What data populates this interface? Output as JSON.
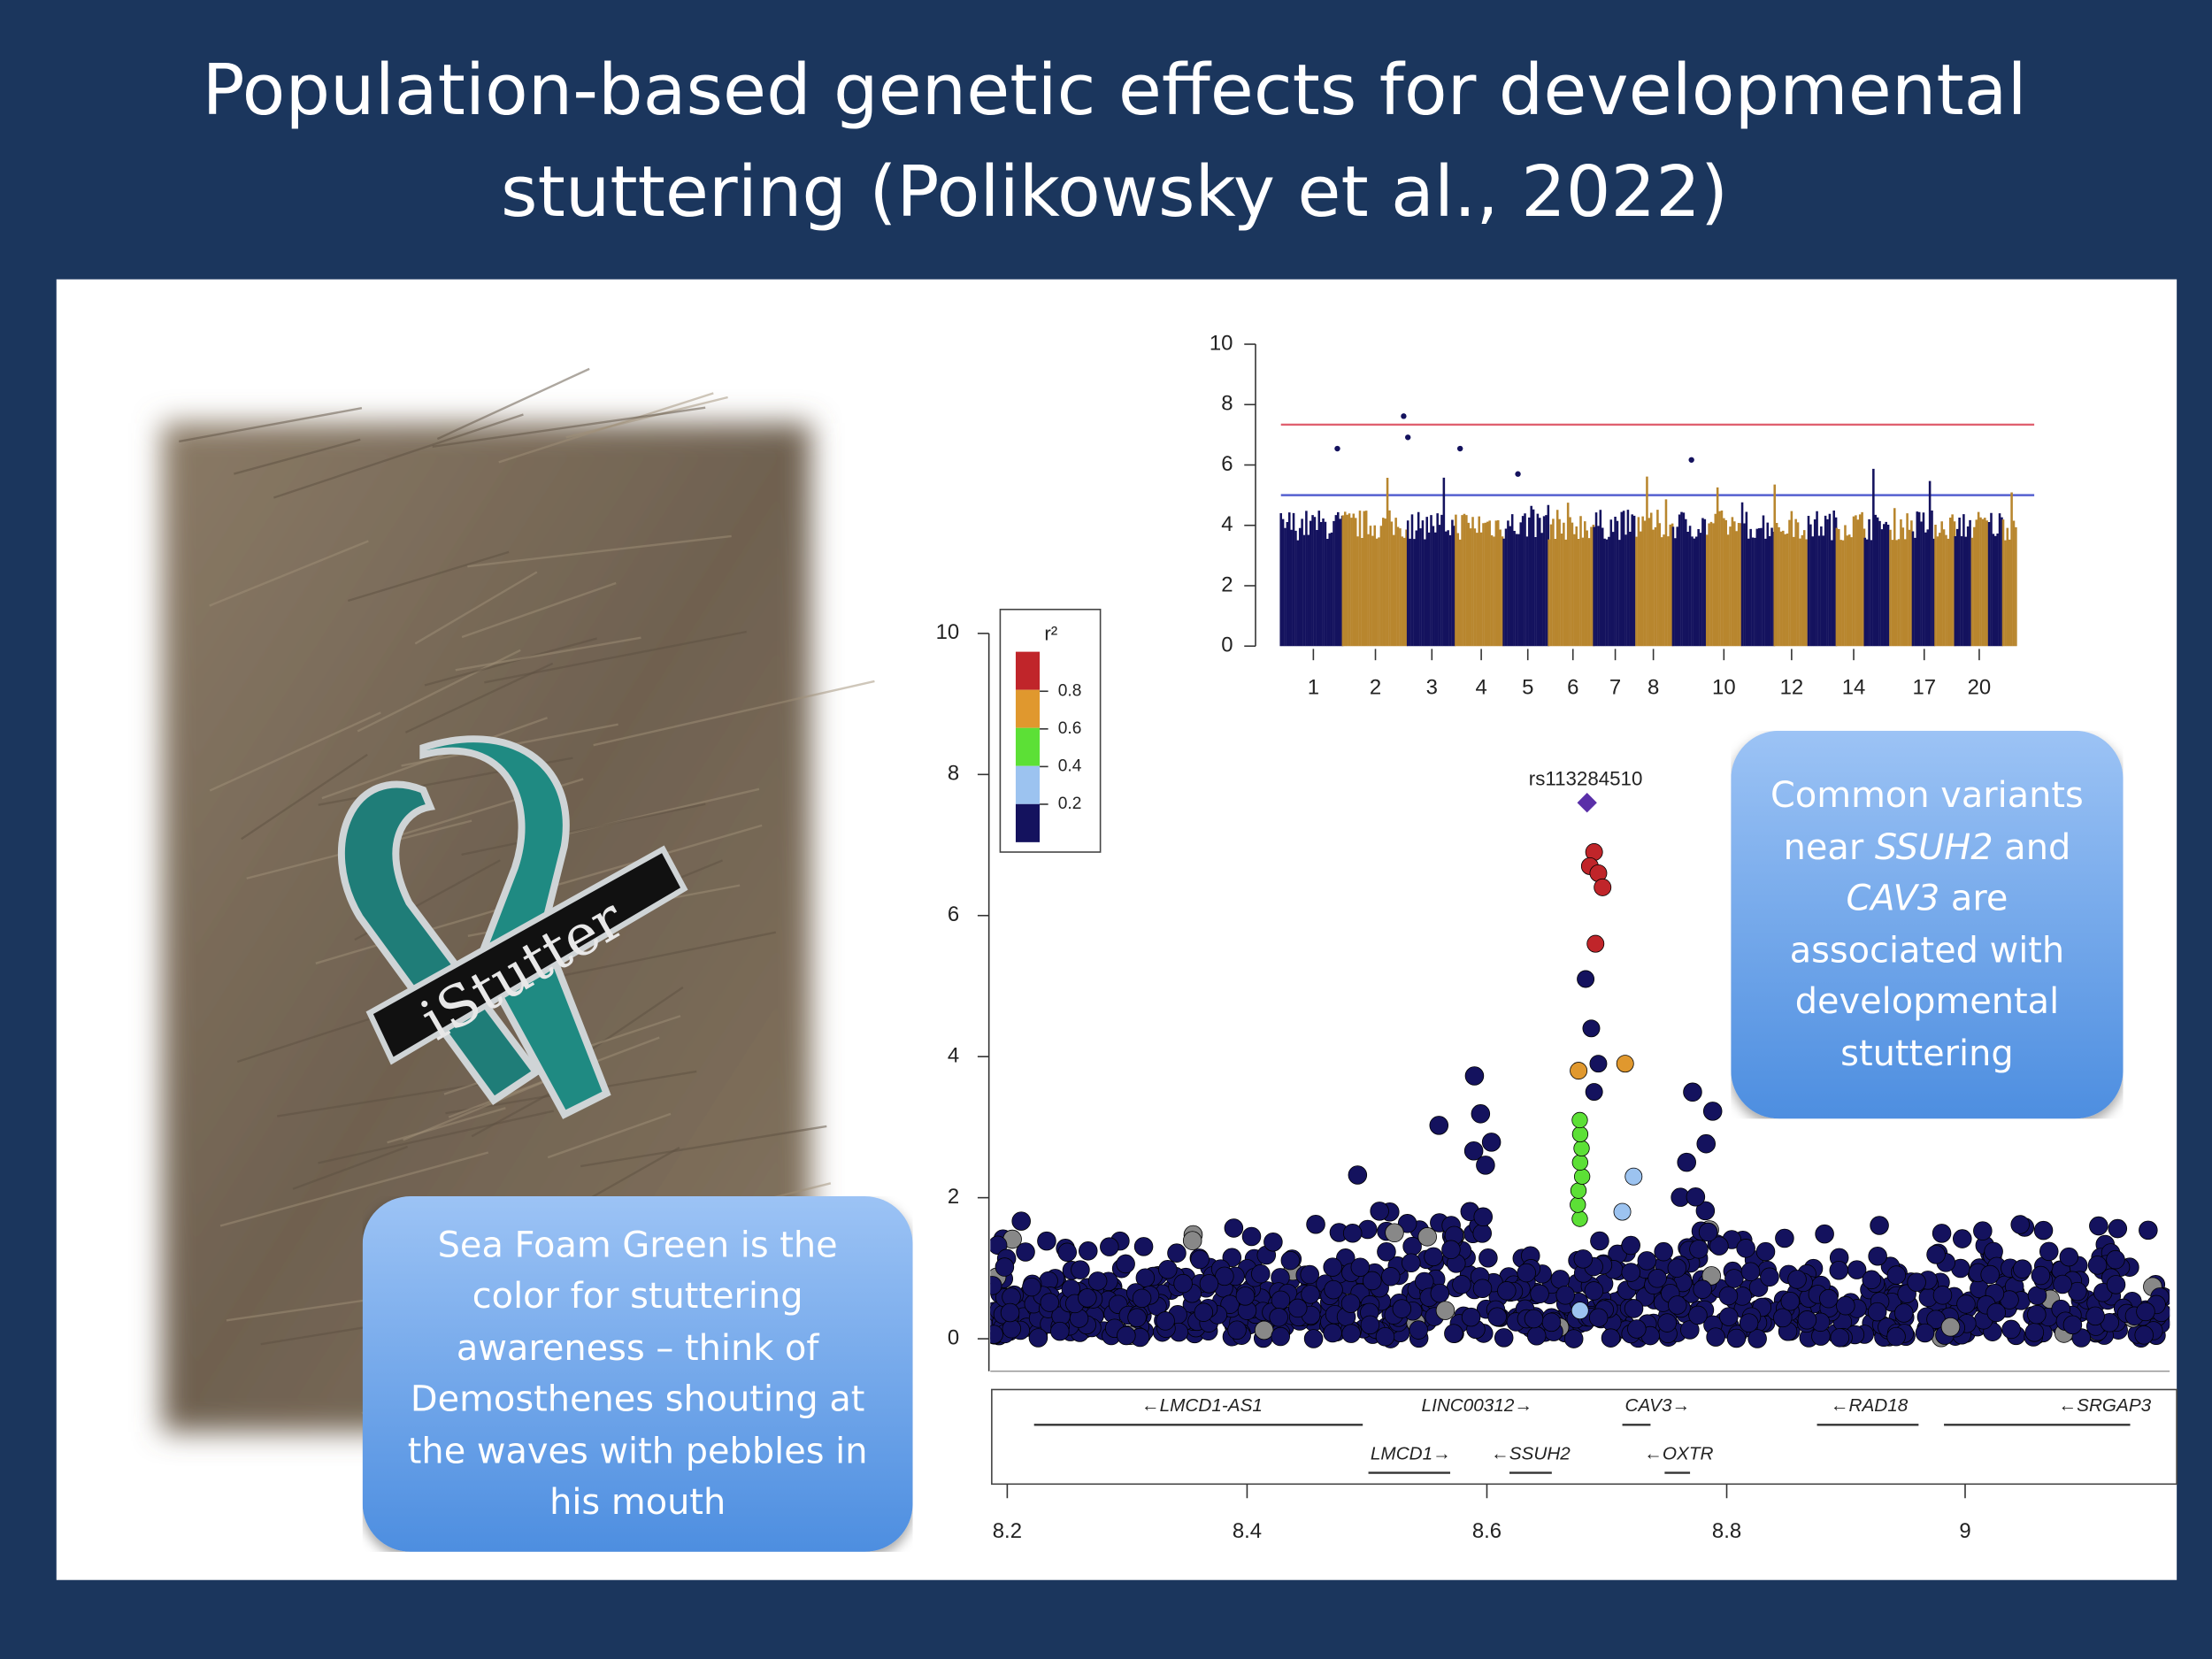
{
  "title": "Population-based genetic effects for developmental stuttering (Polikowsky et al., 2022)",
  "photo": {
    "pin_text": "iStutter"
  },
  "callout_left": "Sea Foam Green is the color for stuttering awareness – think of Demosthenes shouting at the waves with pebbles in his mouth",
  "callout_right": [
    "Common variants near ",
    "SSUH2",
    " and ",
    "CAV3",
    " are associated with developmental stuttering"
  ],
  "manhattan": {
    "yticks": [
      "0",
      "2",
      "4",
      "6",
      "8",
      "10"
    ],
    "xticks": [
      "1",
      "2",
      "3",
      "4",
      "5",
      "6",
      "7",
      "8",
      "10",
      "12",
      "14",
      "17",
      "20"
    ]
  },
  "regional": {
    "yticks": [
      "0",
      "2",
      "4",
      "6",
      "8",
      "10"
    ],
    "xticks": [
      "8.2",
      "8.4",
      "8.6",
      "8.8",
      "9"
    ],
    "legend_title": "r²",
    "legend_ticks": [
      "0.8",
      "0.6",
      "0.4",
      "0.2"
    ],
    "lead_snp": "rs113284510",
    "genes": [
      "←LMCD1-AS1",
      "LINC00312→",
      "CAV3→",
      "←RAD18",
      "←SRGAP3",
      "LMCD1→",
      "←SSUH2",
      "←OXTR"
    ]
  }
}
